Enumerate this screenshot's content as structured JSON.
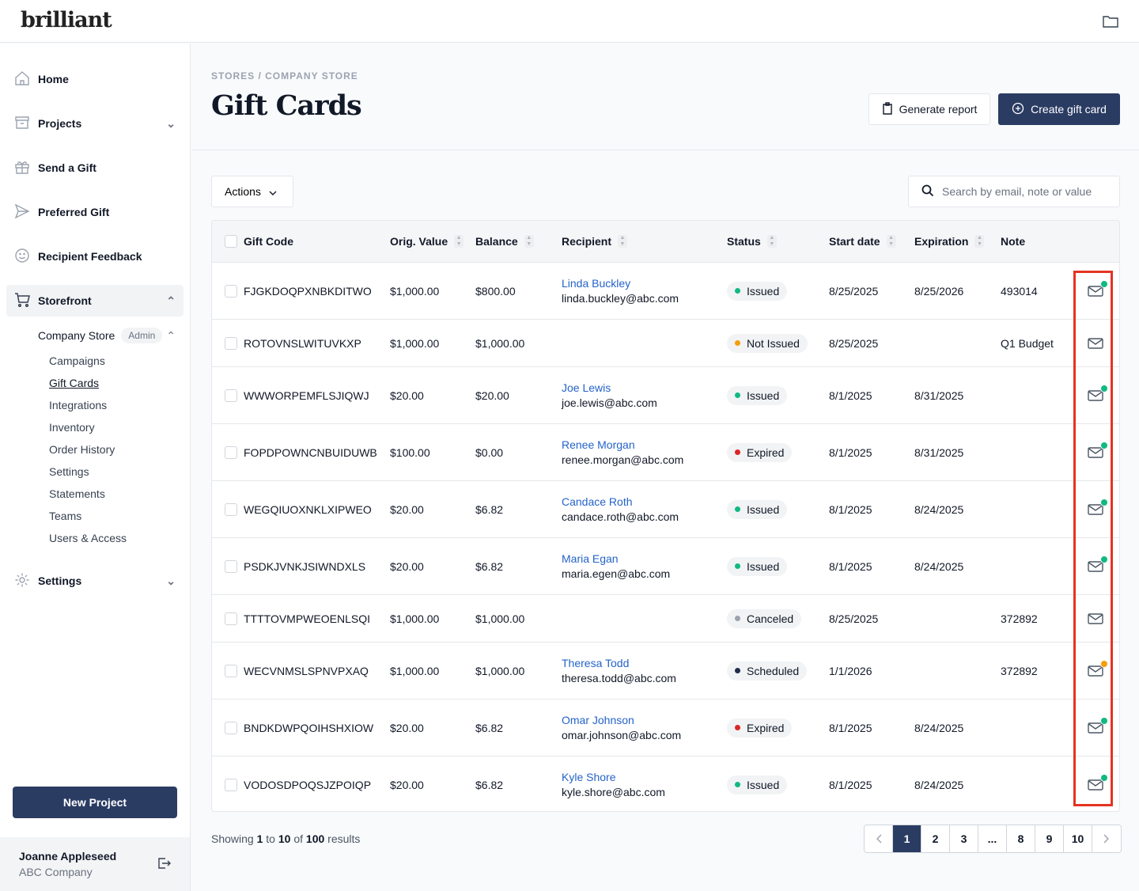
{
  "app": {
    "logo": "brilliant"
  },
  "sidebar": {
    "items": [
      {
        "label": "Home"
      },
      {
        "label": "Projects"
      },
      {
        "label": "Send a Gift"
      },
      {
        "label": "Preferred Gift"
      },
      {
        "label": "Recipient Feedback"
      },
      {
        "label": "Storefront"
      },
      {
        "label": "Settings"
      }
    ],
    "store": {
      "label": "Company Store",
      "badge": "Admin"
    },
    "store_links": [
      "Campaigns",
      "Gift Cards",
      "Integrations",
      "Inventory",
      "Order History",
      "Settings",
      "Statements",
      "Teams",
      "Users & Access"
    ],
    "new_project": "New Project",
    "user": {
      "name": "Joanne Appleseed",
      "company": "ABC Company"
    }
  },
  "header": {
    "breadcrumb": "STORES / COMPANY STORE",
    "title": "Gift Cards",
    "generate": "Generate report",
    "create": "Create gift card"
  },
  "toolbar": {
    "actions": "Actions",
    "search_placeholder": "Search by email, note or value"
  },
  "table": {
    "columns": [
      "Gift Code",
      "Orig. Value",
      "Balance",
      "Recipient",
      "Status",
      "Start date",
      "Expiration",
      "Note"
    ],
    "rows": [
      {
        "code": "FJGKDOQPXNBKDITWO",
        "orig": "$1,000.00",
        "balance": "$800.00",
        "name": "Linda Buckley",
        "email": "linda.buckley@abc.com",
        "status": "Issued",
        "start": "8/25/2025",
        "exp": "8/25/2026",
        "note": "493014",
        "mail": "sent"
      },
      {
        "code": "ROTOVNSLWITUVKXP",
        "orig": "$1,000.00",
        "balance": "$1,000.00",
        "name": "",
        "email": "",
        "status": "Not Issued",
        "start": "8/25/2025",
        "exp": "",
        "note": "Q1 Budget",
        "mail": "none"
      },
      {
        "code": "WWWORPEMFLSJIQWJ",
        "orig": "$20.00",
        "balance": "$20.00",
        "name": "Joe Lewis",
        "email": "joe.lewis@abc.com",
        "status": "Issued",
        "start": "8/1/2025",
        "exp": "8/31/2025",
        "note": "",
        "mail": "sent"
      },
      {
        "code": "FOPDPOWNCNBUIDUWB",
        "orig": "$100.00",
        "balance": "$0.00",
        "name": "Renee Morgan",
        "email": "renee.morgan@abc.com",
        "status": "Expired",
        "start": "8/1/2025",
        "exp": "8/31/2025",
        "note": "",
        "mail": "sent"
      },
      {
        "code": "WEGQIUOXNKLXIPWEO",
        "orig": "$20.00",
        "balance": "$6.82",
        "name": "Candace Roth",
        "email": "candace.roth@abc.com",
        "status": "Issued",
        "start": "8/1/2025",
        "exp": "8/24/2025",
        "note": "",
        "mail": "sent"
      },
      {
        "code": "PSDKJVNKJSIWNDXLS",
        "orig": "$20.00",
        "balance": "$6.82",
        "name": "Maria Egan",
        "email": "maria.egen@abc.com",
        "status": "Issued",
        "start": "8/1/2025",
        "exp": "8/24/2025",
        "note": "",
        "mail": "sent"
      },
      {
        "code": "TTTTOVMPWEOENLSQI",
        "orig": "$1,000.00",
        "balance": "$1,000.00",
        "name": "",
        "email": "",
        "status": "Canceled",
        "start": "8/25/2025",
        "exp": "",
        "note": "372892",
        "mail": "none"
      },
      {
        "code": "WECVNMSLSPNVPXAQ",
        "orig": "$1,000.00",
        "balance": "$1,000.00",
        "name": "Theresa Todd",
        "email": "theresa.todd@abc.com",
        "status": "Scheduled",
        "start": "1/1/2026",
        "exp": "",
        "note": "372892",
        "mail": "pending"
      },
      {
        "code": "BNDKDWPQOIHSHXIOW",
        "orig": "$20.00",
        "balance": "$6.82",
        "name": "Omar Johnson",
        "email": "omar.johnson@abc.com",
        "status": "Expired",
        "start": "8/1/2025",
        "exp": "8/24/2025",
        "note": "",
        "mail": "sent"
      },
      {
        "code": "VODOSDPOQSJZPOIQP",
        "orig": "$20.00",
        "balance": "$6.82",
        "name": "Kyle Shore",
        "email": "kyle.shore@abc.com",
        "status": "Issued",
        "start": "8/1/2025",
        "exp": "8/24/2025",
        "note": "",
        "mail": "sent"
      }
    ]
  },
  "status_colors": {
    "Issued": "#10b981",
    "Not Issued": "#f59e0b",
    "Expired": "#dc2626",
    "Canceled": "#9ca3af",
    "Scheduled": "#1f2d4d"
  },
  "mail_colors": {
    "sent": "#10b981",
    "pending": "#f59e0b"
  },
  "footer": {
    "showing": "Showing",
    "from": "1",
    "to_word": "to",
    "to": "10",
    "of_word": "of",
    "total": "100",
    "results": "results"
  },
  "pagination": {
    "pages": [
      "1",
      "2",
      "3",
      "...",
      "8",
      "9",
      "10"
    ],
    "current": "1"
  }
}
